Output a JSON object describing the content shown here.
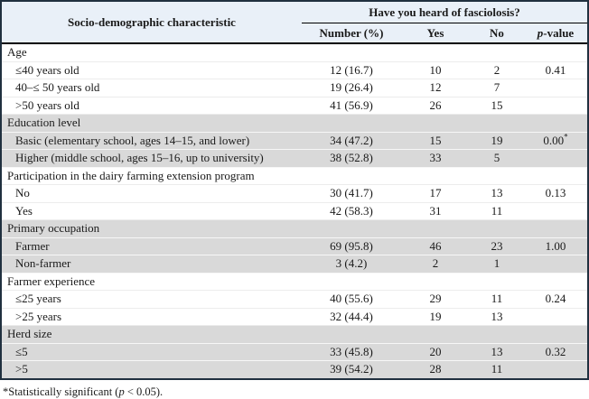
{
  "colors": {
    "frame_border": "#20303f",
    "header_bg": "#e9f0f8",
    "shaded_row_bg": "#d9d9d9",
    "rule": "#000000"
  },
  "header": {
    "characteristic_col": "Socio-demographic characteristic",
    "question_span": "Have you heard of fasciolosis?",
    "sub_columns": [
      "Number (%)",
      "Yes",
      "No"
    ],
    "pvalue_col": {
      "italic": "p",
      "rest": "-value"
    }
  },
  "groups": [
    {
      "label": "Age",
      "shaded": false,
      "rows": [
        {
          "label": "≤40 years old",
          "number": "12 (16.7)",
          "yes": "10",
          "no": "2",
          "p": "0.41",
          "p_sup": ""
        },
        {
          "label": "40–≤ 50 years old",
          "number": "19 (26.4)",
          "yes": "12",
          "no": "7",
          "p": "",
          "p_sup": ""
        },
        {
          "label": ">50 years old",
          "number": "41 (56.9)",
          "yes": "26",
          "no": "15",
          "p": "",
          "p_sup": ""
        }
      ]
    },
    {
      "label": "Education level",
      "shaded": true,
      "rows": [
        {
          "label": "Basic (elementary school, ages 14–15, and lower)",
          "number": "34 (47.2)",
          "yes": "15",
          "no": "19",
          "p": "0.00",
          "p_sup": "*"
        },
        {
          "label": "Higher (middle school, ages 15–16, up to university)",
          "number": "38 (52.8)",
          "yes": "33",
          "no": "5",
          "p": "",
          "p_sup": ""
        }
      ]
    },
    {
      "label": "Participation in the dairy farming extension program",
      "shaded": false,
      "rows": [
        {
          "label": "No",
          "number": "30 (41.7)",
          "yes": "17",
          "no": "13",
          "p": "0.13",
          "p_sup": ""
        },
        {
          "label": "Yes",
          "number": "42 (58.3)",
          "yes": "31",
          "no": "11",
          "p": "",
          "p_sup": ""
        }
      ]
    },
    {
      "label": "Primary occupation",
      "shaded": true,
      "rows": [
        {
          "label": "Farmer",
          "number": "69 (95.8)",
          "yes": "46",
          "no": "23",
          "p": "1.00",
          "p_sup": ""
        },
        {
          "label": "Non-farmer",
          "number": "3 (4.2)",
          "yes": "2",
          "no": "1",
          "p": "",
          "p_sup": ""
        }
      ]
    },
    {
      "label": "Farmer experience",
      "shaded": false,
      "rows": [
        {
          "label": "≤25 years",
          "number": "40 (55.6)",
          "yes": "29",
          "no": "11",
          "p": "0.24",
          "p_sup": ""
        },
        {
          "label": ">25 years",
          "number": "32 (44.4)",
          "yes": "19",
          "no": "13",
          "p": "",
          "p_sup": ""
        }
      ]
    },
    {
      "label": "Herd size",
      "shaded": true,
      "rows": [
        {
          "label": "≤5",
          "number": "33 (45.8)",
          "yes": "20",
          "no": "13",
          "p": "0.32",
          "p_sup": ""
        },
        {
          "label": ">5",
          "number": "39 (54.2)",
          "yes": "28",
          "no": "11",
          "p": "",
          "p_sup": ""
        }
      ]
    }
  ],
  "footnote": {
    "prefix": "*Statistically significant (",
    "italic": "p",
    "suffix": " < 0.05)."
  }
}
